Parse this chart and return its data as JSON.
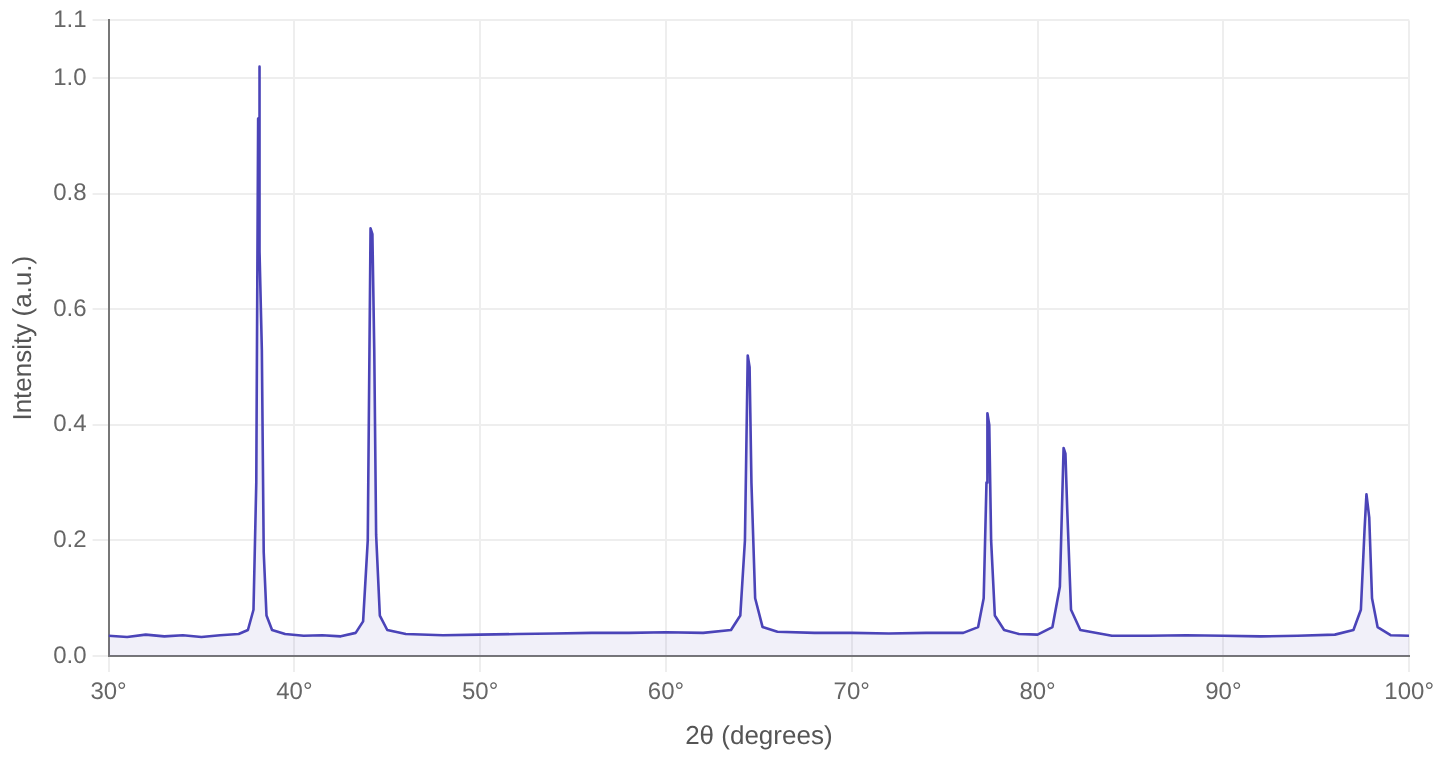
{
  "chart_data": {
    "type": "area",
    "xlabel": "2θ (degrees)",
    "ylabel": "Intensity (a.u.)",
    "xlim": [
      30,
      100
    ],
    "xticks": [
      {
        "value": 30,
        "label": "30°"
      },
      {
        "value": 40,
        "label": "40°"
      },
      {
        "value": 50,
        "label": "50°"
      },
      {
        "value": 60,
        "label": "60°"
      },
      {
        "value": 70,
        "label": "70°"
      },
      {
        "value": 80,
        "label": "80°"
      },
      {
        "value": 90,
        "label": "90°"
      },
      {
        "value": 100,
        "label": "100°"
      }
    ],
    "ylim": [
      0,
      1.1
    ],
    "yticks": [
      {
        "value": 0,
        "label": "0.0"
      },
      0.2,
      0.4,
      0.6,
      0.8,
      {
        "value": 1,
        "label": "1.0"
      },
      1.1
    ],
    "grid": true,
    "legend": false,
    "marker": "none",
    "line_style": "solid",
    "series": [
      {
        "color": "#4b44b8",
        "x": [
          30,
          31,
          32,
          33,
          34,
          35,
          36,
          37,
          37.5,
          37.8,
          37.95,
          38.05,
          38.1,
          38.15,
          38.25,
          38.35,
          38.5,
          38.8,
          39.5,
          40.5,
          41.5,
          42.5,
          43.3,
          43.7,
          43.95,
          44.1,
          44.2,
          44.3,
          44.4,
          44.6,
          45,
          46,
          48,
          50,
          52,
          54,
          56,
          58,
          60,
          62,
          63.5,
          64,
          64.25,
          64.4,
          64.5,
          64.6,
          64.8,
          65.2,
          66,
          68,
          70,
          72,
          74,
          76,
          76.8,
          77.1,
          77.25,
          77.3,
          77.4,
          77.5,
          77.7,
          78.2,
          79,
          80,
          80.8,
          81.2,
          81.4,
          81.5,
          81.6,
          81.8,
          82.3,
          84,
          86,
          88,
          90,
          92,
          94,
          96,
          97,
          97.4,
          97.6,
          97.7,
          97.85,
          98,
          98.3,
          99,
          100
        ],
        "values": [
          0.035,
          0.033,
          0.037,
          0.034,
          0.036,
          0.033,
          0.036,
          0.038,
          0.045,
          0.08,
          0.3,
          0.93,
          1.02,
          0.7,
          0.53,
          0.18,
          0.07,
          0.045,
          0.038,
          0.035,
          0.036,
          0.034,
          0.04,
          0.06,
          0.2,
          0.74,
          0.73,
          0.53,
          0.21,
          0.07,
          0.045,
          0.038,
          0.036,
          0.037,
          0.038,
          0.039,
          0.04,
          0.04,
          0.041,
          0.04,
          0.045,
          0.07,
          0.2,
          0.52,
          0.5,
          0.3,
          0.1,
          0.05,
          0.042,
          0.04,
          0.04,
          0.039,
          0.04,
          0.04,
          0.05,
          0.1,
          0.3,
          0.42,
          0.4,
          0.2,
          0.07,
          0.045,
          0.038,
          0.037,
          0.05,
          0.12,
          0.36,
          0.35,
          0.25,
          0.08,
          0.045,
          0.035,
          0.035,
          0.036,
          0.035,
          0.034,
          0.035,
          0.037,
          0.045,
          0.08,
          0.22,
          0.28,
          0.24,
          0.1,
          0.05,
          0.036,
          0.035
        ]
      }
    ]
  }
}
